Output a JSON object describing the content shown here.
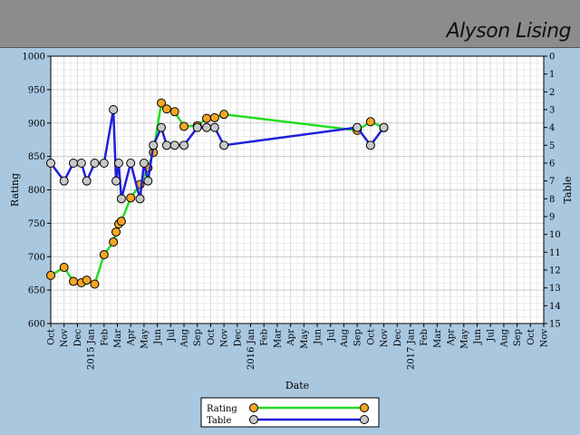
{
  "header": {
    "title": "Alyson Lising"
  },
  "chart_data": {
    "type": "line",
    "xlabel": "Date",
    "ylabel": "Rating",
    "y2label": "Table",
    "ylim": [
      600,
      1000
    ],
    "y2lim": [
      15,
      0
    ],
    "grid": true,
    "legend_position": "bottom-center",
    "x_tick_labels": [
      "Oct",
      "Nov",
      "Dec",
      "2015 Jan",
      "Feb",
      "Mar",
      "Apr",
      "May",
      "Jun",
      "Jul",
      "Aug",
      "Sep",
      "Oct",
      "Nov",
      "Dec",
      "2016 Jan",
      "Feb",
      "Mar",
      "Apr",
      "May",
      "Jun",
      "Jul",
      "Aug",
      "Sep",
      "Oct",
      "Nov",
      "Dec",
      "2017 Jan",
      "Feb",
      "Mar",
      "Apr",
      "May",
      "Jun",
      "Jul",
      "Aug",
      "Sep",
      "Oct",
      "Nov"
    ],
    "y_ticks": [
      600,
      650,
      700,
      750,
      800,
      850,
      900,
      950,
      1000
    ],
    "y2_ticks": [
      0,
      1,
      2,
      3,
      4,
      5,
      6,
      7,
      8,
      9,
      10,
      11,
      12,
      13,
      14,
      15
    ],
    "series": [
      {
        "name": "Rating",
        "axis": "left",
        "line_color": "#22dd22",
        "marker_color": "#f5a623",
        "points": [
          [
            "Oct",
            672
          ],
          [
            "Nov",
            684
          ],
          [
            "Dec",
            663
          ],
          [
            "Dec",
            661
          ],
          [
            "2015 Jan",
            665
          ],
          [
            "2015 Jan",
            659
          ],
          [
            "Feb",
            703
          ],
          [
            "Mar",
            722
          ],
          [
            "Mar",
            737
          ],
          [
            "Mar",
            749
          ],
          [
            "Mar",
            753
          ],
          [
            "Apr",
            788
          ],
          [
            "May",
            808
          ],
          [
            "May",
            833
          ],
          [
            "Jun",
            856
          ],
          [
            "Jun",
            930
          ],
          [
            "Jul",
            921
          ],
          [
            "Jul",
            917
          ],
          [
            "Aug",
            895
          ],
          [
            "Sep",
            896
          ],
          [
            "Oct",
            907
          ],
          [
            "Oct",
            908
          ],
          [
            "Nov",
            913
          ],
          [
            "Sep",
            889
          ],
          [
            "Oct",
            902
          ],
          [
            "Nov",
            893
          ]
        ]
      },
      {
        "name": "Table",
        "axis": "right",
        "line_color": "#1f1fdd",
        "marker_color": "#c8c8c8",
        "points": [
          [
            "Oct",
            6
          ],
          [
            "Nov",
            7
          ],
          [
            "Dec",
            6
          ],
          [
            "Dec",
            6
          ],
          [
            "2015 Jan",
            7
          ],
          [
            "2015 Jan",
            6
          ],
          [
            "Feb",
            6
          ],
          [
            "Mar",
            3
          ],
          [
            "Mar",
            7
          ],
          [
            "Mar",
            6
          ],
          [
            "Mar",
            8
          ],
          [
            "Apr",
            6
          ],
          [
            "May",
            8
          ],
          [
            "May",
            6
          ],
          [
            "May",
            7
          ],
          [
            "Jun",
            5
          ],
          [
            "Jun",
            4
          ],
          [
            "Jul",
            5
          ],
          [
            "Jul",
            5
          ],
          [
            "Aug",
            5
          ],
          [
            "Sep",
            4
          ],
          [
            "Oct",
            4
          ],
          [
            "Oct",
            4
          ],
          [
            "Nov",
            5
          ],
          [
            "Sep",
            4
          ],
          [
            "Oct",
            5
          ],
          [
            "Nov",
            4
          ]
        ]
      }
    ]
  }
}
